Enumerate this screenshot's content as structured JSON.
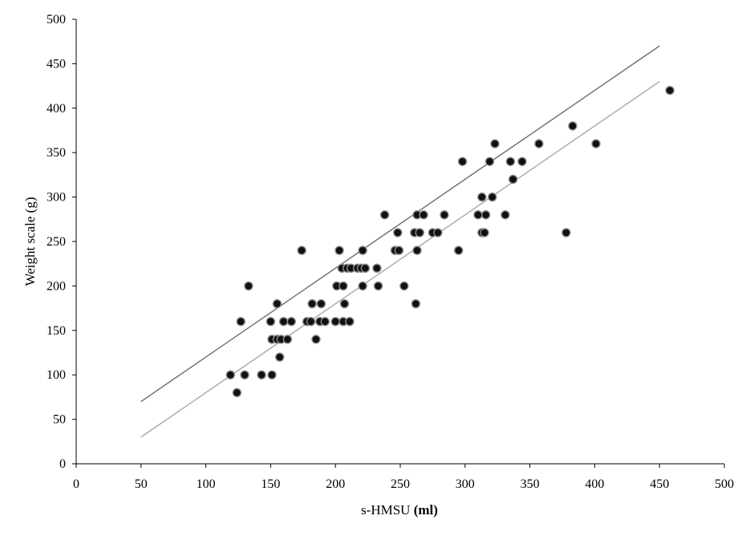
{
  "chart_data": {
    "type": "scatter",
    "xlabel": "s-HMSU",
    "xlabel_unit": "(ml)",
    "ylabel": "Weight  scale (g)",
    "xlim": [
      0,
      500
    ],
    "ylim": [
      0,
      500
    ],
    "xticks": [
      0,
      50,
      100,
      150,
      200,
      250,
      300,
      350,
      400,
      450,
      500
    ],
    "yticks": [
      0,
      50,
      100,
      150,
      200,
      250,
      300,
      350,
      400,
      450,
      500
    ],
    "grid": false,
    "legend": "none",
    "points": [
      {
        "x": 119,
        "y": 100
      },
      {
        "x": 124,
        "y": 80
      },
      {
        "x": 127,
        "y": 160
      },
      {
        "x": 130,
        "y": 100
      },
      {
        "x": 133,
        "y": 200
      },
      {
        "x": 143,
        "y": 100
      },
      {
        "x": 150,
        "y": 160
      },
      {
        "x": 151,
        "y": 100
      },
      {
        "x": 151,
        "y": 140
      },
      {
        "x": 155,
        "y": 140
      },
      {
        "x": 155,
        "y": 180
      },
      {
        "x": 157,
        "y": 120
      },
      {
        "x": 158,
        "y": 140
      },
      {
        "x": 160,
        "y": 160
      },
      {
        "x": 163,
        "y": 140
      },
      {
        "x": 166,
        "y": 160
      },
      {
        "x": 174,
        "y": 240
      },
      {
        "x": 178,
        "y": 160
      },
      {
        "x": 181,
        "y": 160
      },
      {
        "x": 182,
        "y": 180
      },
      {
        "x": 185,
        "y": 140
      },
      {
        "x": 188,
        "y": 160
      },
      {
        "x": 189,
        "y": 180
      },
      {
        "x": 192,
        "y": 160
      },
      {
        "x": 200,
        "y": 160
      },
      {
        "x": 201,
        "y": 200
      },
      {
        "x": 203,
        "y": 240
      },
      {
        "x": 205,
        "y": 220
      },
      {
        "x": 206,
        "y": 200
      },
      {
        "x": 206,
        "y": 160
      },
      {
        "x": 207,
        "y": 180
      },
      {
        "x": 209,
        "y": 220
      },
      {
        "x": 211,
        "y": 160
      },
      {
        "x": 212,
        "y": 220
      },
      {
        "x": 217,
        "y": 220
      },
      {
        "x": 220,
        "y": 220
      },
      {
        "x": 221,
        "y": 240
      },
      {
        "x": 221,
        "y": 200
      },
      {
        "x": 223,
        "y": 220
      },
      {
        "x": 232,
        "y": 220
      },
      {
        "x": 233,
        "y": 200
      },
      {
        "x": 238,
        "y": 280
      },
      {
        "x": 246,
        "y": 240
      },
      {
        "x": 248,
        "y": 260
      },
      {
        "x": 249,
        "y": 240
      },
      {
        "x": 253,
        "y": 200
      },
      {
        "x": 261,
        "y": 260
      },
      {
        "x": 262,
        "y": 180
      },
      {
        "x": 263,
        "y": 240
      },
      {
        "x": 263,
        "y": 280
      },
      {
        "x": 265,
        "y": 260
      },
      {
        "x": 268,
        "y": 280
      },
      {
        "x": 275,
        "y": 260
      },
      {
        "x": 279,
        "y": 260
      },
      {
        "x": 284,
        "y": 280
      },
      {
        "x": 295,
        "y": 240
      },
      {
        "x": 298,
        "y": 340
      },
      {
        "x": 310,
        "y": 280
      },
      {
        "x": 313,
        "y": 300
      },
      {
        "x": 313,
        "y": 260
      },
      {
        "x": 315,
        "y": 260
      },
      {
        "x": 316,
        "y": 280
      },
      {
        "x": 319,
        "y": 340
      },
      {
        "x": 321,
        "y": 300
      },
      {
        "x": 323,
        "y": 360
      },
      {
        "x": 331,
        "y": 280
      },
      {
        "x": 335,
        "y": 340
      },
      {
        "x": 337,
        "y": 320
      },
      {
        "x": 344,
        "y": 340
      },
      {
        "x": 357,
        "y": 360
      },
      {
        "x": 378,
        "y": 260
      },
      {
        "x": 383,
        "y": 380
      },
      {
        "x": 401,
        "y": 360
      },
      {
        "x": 458,
        "y": 420
      }
    ],
    "lines": [
      {
        "color": "#6e6e6e",
        "x": [
          50,
          450
        ],
        "y": [
          70,
          470
        ]
      },
      {
        "color": "#a8a8a8",
        "x": [
          50,
          450
        ],
        "y": [
          30,
          430
        ]
      }
    ]
  }
}
